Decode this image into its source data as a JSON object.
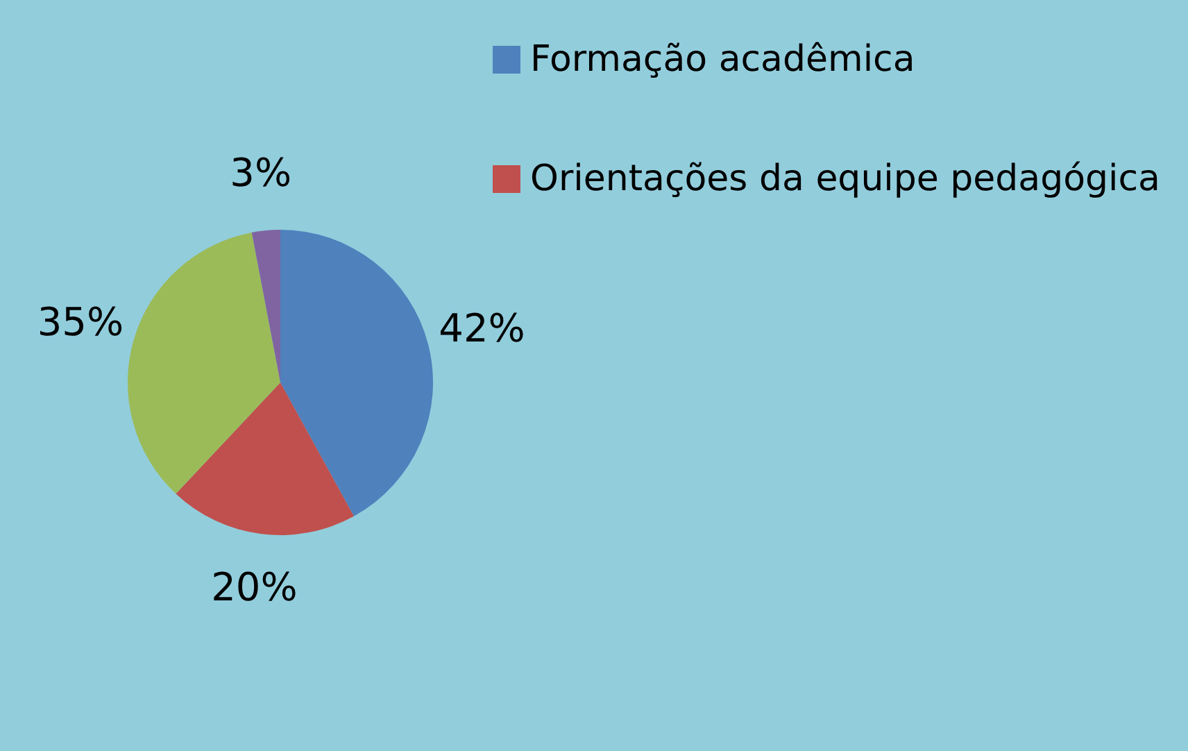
{
  "chart_data": {
    "type": "pie",
    "categories": [
      "Formação acadêmica",
      "Orientações da equipe pedagógica",
      null,
      null
    ],
    "values": [
      42,
      20,
      35,
      3
    ],
    "colors": [
      "#4f81bd",
      "#c0504d",
      "#9bbb59",
      "#8064a2"
    ],
    "value_labels": [
      "42%",
      "20%",
      "35%",
      "3%"
    ],
    "legend": "right"
  }
}
